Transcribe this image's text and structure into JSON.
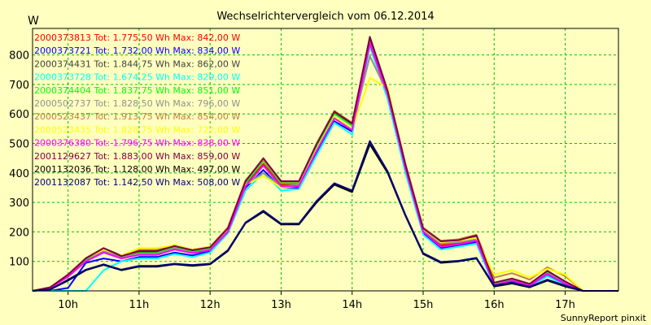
{
  "chart_data": {
    "type": "line",
    "title": "Wechselrichtervergleich vom 06.12.2014",
    "ylabel": "W",
    "ylim": [
      0,
      890
    ],
    "xlim": [
      9.5,
      17.75
    ],
    "yticks": [
      100,
      200,
      300,
      400,
      500,
      600,
      700,
      800
    ],
    "xticks": [
      {
        "x": 10,
        "label": "10h"
      },
      {
        "x": 11,
        "label": "11h"
      },
      {
        "x": 12,
        "label": "12h"
      },
      {
        "x": 13,
        "label": "13h"
      },
      {
        "x": 14,
        "label": "14h"
      },
      {
        "x": 15,
        "label": "15h"
      },
      {
        "x": 16,
        "label": "16h"
      },
      {
        "x": 17,
        "label": "17h"
      }
    ],
    "grid": true,
    "legend_position": "top-left",
    "credit": "SunnyReport pinxit",
    "series": [
      {
        "name": "2000373813 Tot: 1.775,50 Wh Max: 842,00 W",
        "color": "#ff0000",
        "x": [
          9.5,
          9.75,
          10,
          10.25,
          10.5,
          10.75,
          11,
          11.25,
          11.5,
          11.75,
          12,
          12.25,
          12.5,
          12.75,
          13,
          13.25,
          13.5,
          13.75,
          14,
          14.25,
          14.5,
          14.75,
          15,
          15.25,
          15.5,
          15.75,
          16,
          16.25,
          16.5,
          16.75,
          17,
          17.25,
          17.5,
          17.75
        ],
        "y": [
          0,
          10,
          50,
          100,
          135,
          110,
          125,
          125,
          145,
          130,
          140,
          200,
          360,
          430,
          360,
          360,
          480,
          590,
          550,
          842,
          670,
          420,
          205,
          155,
          160,
          175,
          20,
          35,
          20,
          60,
          25,
          0,
          0,
          0
        ]
      },
      {
        "name": "2000373721 Tot: 1.732,00 Wh Max: 834,00 W",
        "color": "#0000ff",
        "x": [
          9.5,
          9.75,
          10,
          10.25,
          10.5,
          10.75,
          11,
          11.25,
          11.5,
          11.75,
          12,
          12.25,
          12.5,
          12.75,
          13,
          13.25,
          13.5,
          13.75,
          14,
          14.25,
          14.5,
          14.75,
          15,
          15.25,
          15.5,
          15.75,
          16,
          16.25,
          16.5,
          16.75,
          17,
          17.25,
          17.5,
          17.75
        ],
        "y": [
          0,
          0,
          10,
          95,
          110,
          100,
          115,
          115,
          130,
          120,
          135,
          200,
          350,
          410,
          350,
          350,
          470,
          575,
          540,
          834,
          660,
          410,
          195,
          145,
          155,
          165,
          18,
          30,
          15,
          55,
          20,
          0,
          0,
          0
        ]
      },
      {
        "name": "2000374431 Tot: 1.844,75 Wh Max: 862,00 W",
        "color": "#404040",
        "x": [
          9.5,
          9.75,
          10,
          10.25,
          10.5,
          10.75,
          11,
          11.25,
          11.5,
          11.75,
          12,
          12.25,
          12.5,
          12.75,
          13,
          13.25,
          13.5,
          13.75,
          14,
          14.25,
          14.5,
          14.75,
          15,
          15.25,
          15.5,
          15.75,
          16,
          16.25,
          16.5,
          16.75,
          17,
          17.25,
          17.5,
          17.75
        ],
        "y": [
          0,
          12,
          55,
          110,
          145,
          120,
          130,
          130,
          150,
          135,
          145,
          210,
          370,
          445,
          370,
          370,
          495,
          605,
          565,
          862,
          680,
          430,
          210,
          165,
          170,
          185,
          25,
          40,
          22,
          65,
          30,
          0,
          0,
          0
        ]
      },
      {
        "name": "2000373728 Tot: 1.674,25 Wh Max: 829,00 W",
        "color": "#00ffff",
        "x": [
          9.5,
          9.75,
          10,
          10.25,
          10.5,
          10.75,
          11,
          11.25,
          11.5,
          11.75,
          12,
          12.25,
          12.5,
          12.75,
          13,
          13.25,
          13.5,
          13.75,
          14,
          14.25,
          14.5,
          14.75,
          15,
          15.25,
          15.5,
          15.75,
          16,
          16.25,
          16.5,
          16.75,
          17,
          17.25,
          17.5,
          17.75
        ],
        "y": [
          0,
          0,
          0,
          0,
          70,
          100,
          110,
          110,
          125,
          115,
          130,
          195,
          340,
          400,
          340,
          345,
          460,
          570,
          530,
          829,
          650,
          400,
          190,
          140,
          150,
          160,
          15,
          28,
          12,
          50,
          18,
          0,
          0,
          0
        ]
      },
      {
        "name": "2000374404 Tot: 1.837,75 Wh Max: 851,00 W",
        "color": "#00ff00",
        "x": [
          9.5,
          9.75,
          10,
          10.25,
          10.5,
          10.75,
          11,
          11.25,
          11.5,
          11.75,
          12,
          12.25,
          12.5,
          12.75,
          13,
          13.25,
          13.5,
          13.75,
          14,
          14.25,
          14.5,
          14.75,
          15,
          15.25,
          15.5,
          15.75,
          16,
          16.25,
          16.5,
          16.75,
          17,
          17.25,
          17.5,
          17.75
        ],
        "y": [
          0,
          10,
          52,
          105,
          140,
          115,
          128,
          128,
          148,
          132,
          143,
          205,
          365,
          440,
          365,
          365,
          490,
          600,
          560,
          851,
          675,
          425,
          208,
          160,
          168,
          180,
          22,
          38,
          20,
          62,
          28,
          0,
          0,
          0
        ]
      },
      {
        "name": "2000502737 Tot: 1.828,50 Wh Max: 796,00 W",
        "color": "#909090",
        "x": [
          9.5,
          9.75,
          10,
          10.25,
          10.5,
          10.75,
          11,
          11.25,
          11.5,
          11.75,
          12,
          12.25,
          12.5,
          12.75,
          13,
          13.25,
          13.5,
          13.75,
          14,
          14.25,
          14.5,
          14.75,
          15,
          15.25,
          15.5,
          15.75,
          16,
          16.25,
          16.5,
          16.75,
          17,
          17.25,
          17.5,
          17.75
        ],
        "y": [
          0,
          10,
          50,
          100,
          135,
          115,
          125,
          125,
          145,
          130,
          140,
          205,
          360,
          400,
          355,
          360,
          480,
          590,
          550,
          796,
          670,
          425,
          205,
          160,
          165,
          175,
          20,
          35,
          18,
          60,
          25,
          0,
          0,
          0
        ]
      },
      {
        "name": "2000523437 Tot: 1.913,75 Wh Max: 854,00 W",
        "color": "#c08040",
        "x": [
          9.5,
          9.75,
          10,
          10.25,
          10.5,
          10.75,
          11,
          11.25,
          11.5,
          11.75,
          12,
          12.25,
          12.5,
          12.75,
          13,
          13.25,
          13.5,
          13.75,
          14,
          14.25,
          14.5,
          14.75,
          15,
          15.25,
          15.5,
          15.75,
          16,
          16.25,
          16.5,
          16.75,
          17,
          17.25,
          17.5,
          17.75
        ],
        "y": [
          0,
          12,
          55,
          112,
          145,
          118,
          140,
          140,
          155,
          140,
          150,
          215,
          375,
          445,
          370,
          370,
          500,
          610,
          570,
          854,
          680,
          430,
          215,
          170,
          175,
          190,
          45,
          60,
          38,
          80,
          50,
          0,
          0,
          0
        ]
      },
      {
        "name": "2000523435 Tot: 1.828,75 Wh Max: 722,00 W",
        "color": "#ffff00",
        "x": [
          9.5,
          9.75,
          10,
          10.25,
          10.5,
          10.75,
          11,
          11.25,
          11.5,
          11.75,
          12,
          12.25,
          12.5,
          12.75,
          13,
          13.25,
          13.5,
          13.75,
          14,
          14.25,
          14.5,
          14.75,
          15,
          15.25,
          15.5,
          15.75,
          16,
          16.25,
          16.5,
          16.75,
          17,
          17.25,
          17.5,
          17.75
        ],
        "y": [
          0,
          12,
          55,
          110,
          140,
          120,
          145,
          145,
          155,
          140,
          150,
          210,
          360,
          390,
          350,
          355,
          480,
          590,
          550,
          722,
          690,
          420,
          210,
          165,
          170,
          180,
          55,
          70,
          45,
          75,
          55,
          0,
          0,
          0
        ]
      },
      {
        "name": "2000376380 Tot: 1.796,75 Wh Max: 838,00 W",
        "color": "#ff00ff",
        "x": [
          9.5,
          9.75,
          10,
          10.25,
          10.5,
          10.75,
          11,
          11.25,
          11.5,
          11.75,
          12,
          12.25,
          12.5,
          12.75,
          13,
          13.25,
          13.5,
          13.75,
          14,
          14.25,
          14.5,
          14.75,
          15,
          15.25,
          15.5,
          15.75,
          16,
          16.25,
          16.5,
          16.75,
          17,
          17.25,
          17.5,
          17.75
        ],
        "y": [
          0,
          10,
          48,
          100,
          130,
          110,
          122,
          122,
          140,
          128,
          138,
          200,
          355,
          425,
          355,
          355,
          475,
          585,
          545,
          838,
          665,
          415,
          200,
          150,
          158,
          170,
          20,
          35,
          18,
          58,
          24,
          0,
          0,
          0
        ]
      },
      {
        "name": "2001129627 Tot: 1.883,00 Wh Max: 859,00 W",
        "color": "#800040",
        "x": [
          9.5,
          9.75,
          10,
          10.25,
          10.5,
          10.75,
          11,
          11.25,
          11.5,
          11.75,
          12,
          12.25,
          12.5,
          12.75,
          13,
          13.25,
          13.5,
          13.75,
          14,
          14.25,
          14.5,
          14.75,
          15,
          15.25,
          15.5,
          15.75,
          16,
          16.25,
          16.5,
          16.75,
          17,
          17.25,
          17.5,
          17.75
        ],
        "y": [
          0,
          12,
          55,
          110,
          145,
          118,
          135,
          135,
          152,
          138,
          148,
          212,
          372,
          450,
          372,
          372,
          498,
          608,
          568,
          859,
          678,
          428,
          212,
          168,
          172,
          188,
          28,
          42,
          24,
          68,
          32,
          0,
          0,
          0
        ]
      },
      {
        "name": "2001132036 Tot: 1.128,00 Wh Max: 497,00 W",
        "color": "#000000",
        "x": [
          9.5,
          9.75,
          10,
          10.25,
          10.5,
          10.75,
          11,
          11.25,
          11.5,
          11.75,
          12,
          12.25,
          12.5,
          12.75,
          13,
          13.25,
          13.5,
          13.75,
          14,
          14.25,
          14.5,
          14.75,
          15,
          15.25,
          15.5,
          15.75,
          16,
          16.25,
          16.5,
          16.75,
          17,
          17.25,
          17.5,
          17.75
        ],
        "y": [
          0,
          5,
          35,
          70,
          88,
          70,
          82,
          82,
          90,
          85,
          90,
          135,
          230,
          268,
          225,
          225,
          300,
          360,
          335,
          497,
          400,
          255,
          125,
          95,
          100,
          110,
          15,
          25,
          12,
          35,
          15,
          0,
          0,
          0
        ]
      },
      {
        "name": "2001132087 Tot: 1.142,50 Wh Max: 508,00 W",
        "color": "#000080",
        "x": [
          9.5,
          9.75,
          10,
          10.25,
          10.5,
          10.75,
          11,
          11.25,
          11.5,
          11.75,
          12,
          12.25,
          12.5,
          12.75,
          13,
          13.25,
          13.5,
          13.75,
          14,
          14.25,
          14.5,
          14.75,
          15,
          15.25,
          15.5,
          15.75,
          16,
          16.25,
          16.5,
          16.75,
          17,
          17.25,
          17.5,
          17.75
        ],
        "y": [
          0,
          5,
          38,
          72,
          90,
          72,
          85,
          85,
          92,
          88,
          92,
          138,
          232,
          272,
          228,
          228,
          305,
          365,
          340,
          508,
          405,
          258,
          128,
          98,
          102,
          112,
          18,
          28,
          14,
          38,
          18,
          0,
          0,
          0
        ]
      }
    ]
  }
}
